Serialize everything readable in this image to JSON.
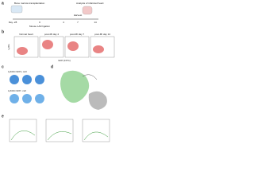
{
  "panels": {
    "a": {
      "label": "a",
      "step": "Bone marrow transplantation",
      "header": "Analysis of infarcted heart",
      "event": "Mouse LAD ligation",
      "harvest": "Harvest",
      "timeline": [
        "Day -28",
        "0",
        "4",
        "7",
        "14"
      ]
    },
    "b": {
      "label": "b",
      "columns": [
        "Normal heart",
        "post-MI day 4",
        "post-MI day 7",
        "post-MI day 14"
      ],
      "y_axis": "Ly6G",
      "x_axis": "GFP (FITC)"
    },
    "c": {
      "label": "c",
      "titles": [
        "Ly6Ghi GFP+ cell",
        "Ly6Ghi GFP- cell"
      ]
    },
    "d": {
      "label": "d"
    },
    "e": {
      "label": "e"
    }
  }
}
